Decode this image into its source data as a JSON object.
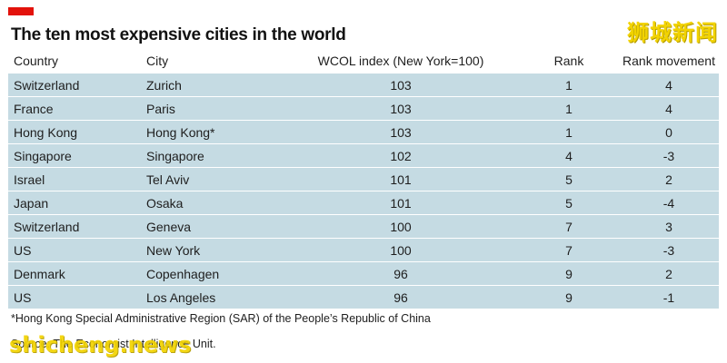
{
  "title": "The ten most expensive cities in the world",
  "watermark_top": "狮城新闻",
  "watermark_bottom": "shicheng.news",
  "colors": {
    "accent": "#e3120b",
    "row_background": "#c5dbe3",
    "watermark": "#f2d300"
  },
  "table": {
    "headers": [
      "Country",
      "City",
      "WCOL index (New York=100)",
      "Rank",
      "Rank movement"
    ],
    "rows": [
      [
        "Switzerland",
        "Zurich",
        "103",
        "1",
        "4"
      ],
      [
        "France",
        "Paris",
        "103",
        "1",
        "4"
      ],
      [
        "Hong Kong",
        "Hong Kong*",
        "103",
        "1",
        "0"
      ],
      [
        "Singapore",
        "Singapore",
        "102",
        "4",
        "-3"
      ],
      [
        "Israel",
        "Tel Aviv",
        "101",
        "5",
        "2"
      ],
      [
        "Japan",
        "Osaka",
        "101",
        "5",
        "-4"
      ],
      [
        "Switzerland",
        "Geneva",
        "100",
        "7",
        "3"
      ],
      [
        "US",
        "New York",
        "100",
        "7",
        "-3"
      ],
      [
        "Denmark",
        "Copenhagen",
        "96",
        "9",
        "2"
      ],
      [
        "US",
        "Los Angeles",
        "96",
        "9",
        "-1"
      ]
    ]
  },
  "footnote": "*Hong Kong Special Administrative Region (SAR) of the People’s Republic of China",
  "source": "Source: The Economist Intelligence Unit."
}
